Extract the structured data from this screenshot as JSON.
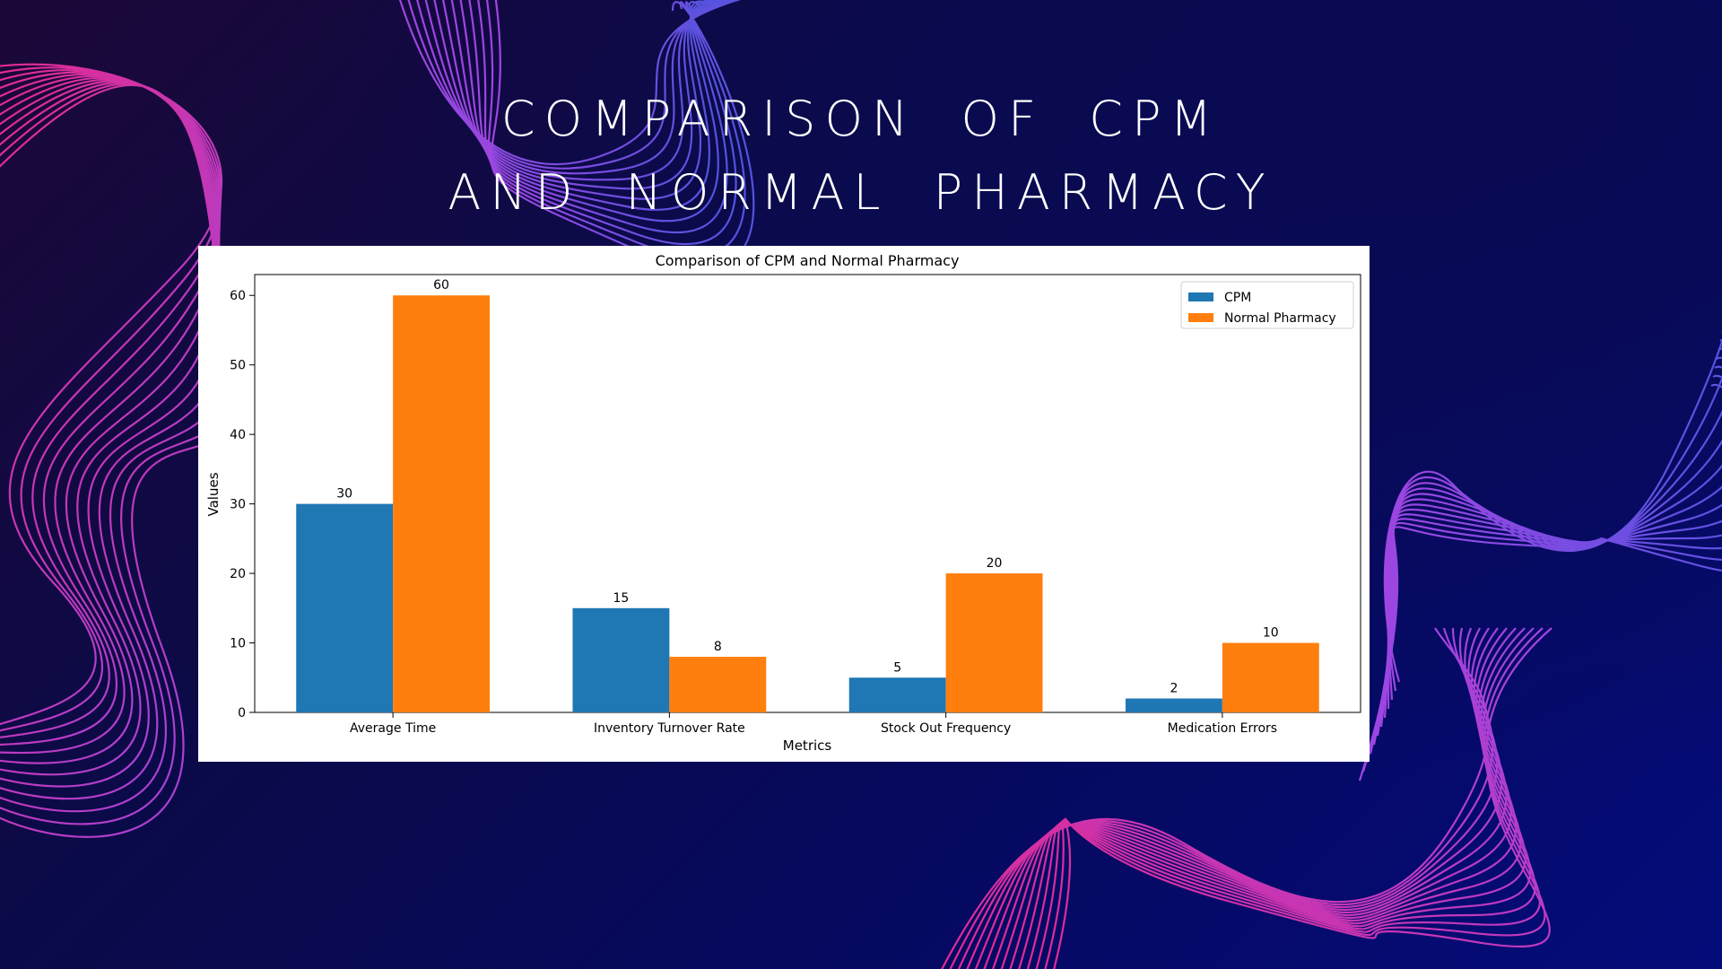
{
  "slide": {
    "title_line1": "Comparison of CPM",
    "title_line2": "and Normal Pharmacy"
  },
  "colors": {
    "cpm": "#1f77b4",
    "normal": "#ff7f0e",
    "wave_pink": "#ff2d95",
    "wave_purple": "#b04cf0",
    "wave_blue": "#5a5cf0"
  },
  "chart_data": {
    "type": "bar",
    "title": "Comparison of CPM and Normal Pharmacy",
    "xlabel": "Metrics",
    "ylabel": "Values",
    "categories": [
      "Average Time",
      "Inventory Turnover Rate",
      "Stock Out Frequency",
      "Medication Errors"
    ],
    "series": [
      {
        "name": "CPM",
        "values": [
          30,
          15,
          5,
          2
        ]
      },
      {
        "name": "Normal Pharmacy",
        "values": [
          60,
          8,
          20,
          10
        ]
      }
    ],
    "ylim": [
      0,
      63
    ],
    "yticks": [
      0,
      10,
      20,
      30,
      40,
      50,
      60
    ],
    "grid": false,
    "legend": "top-right",
    "data_labels": true
  }
}
